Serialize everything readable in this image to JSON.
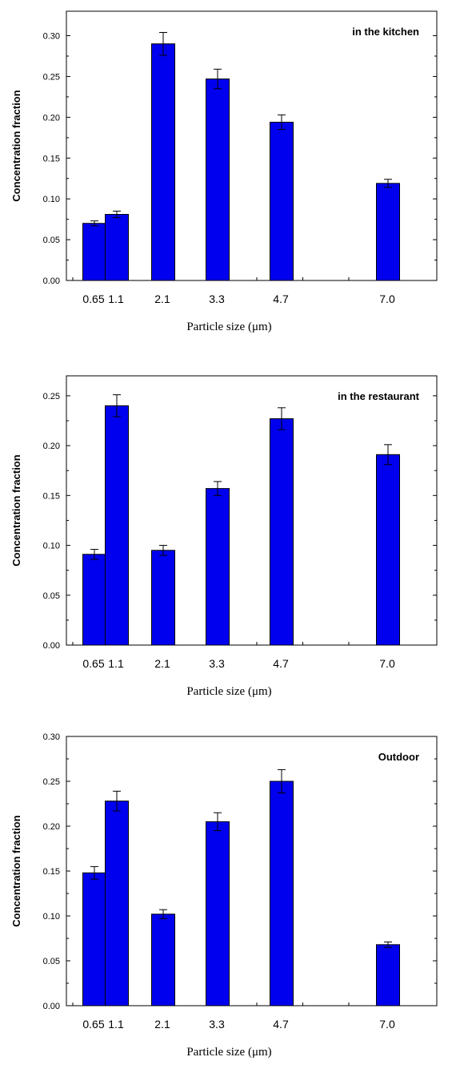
{
  "colors": {
    "bar_fill": "#0000EE",
    "bar_stroke": "#000000",
    "axis": "#000000"
  },
  "chart_data": [
    {
      "type": "bar",
      "annotation": "in the kitchen",
      "xlabel": "Particle size (μm)",
      "ylabel": "Concentration fraction",
      "categories": [
        "0.65",
        "1.1",
        "2.1",
        "3.3",
        "4.7",
        "7.0"
      ],
      "values": [
        0.07,
        0.081,
        0.29,
        0.247,
        0.194,
        0.119
      ],
      "errors": [
        0.003,
        0.004,
        0.014,
        0.012,
        0.009,
        0.005
      ],
      "ylim": [
        0,
        0.33
      ],
      "yticks": [
        "0.00",
        "0.05",
        "0.10",
        "0.15",
        "0.20",
        "0.25",
        "0.30"
      ],
      "grid": false
    },
    {
      "type": "bar",
      "annotation": "in the restaurant",
      "xlabel": "Particle size (μm)",
      "ylabel": "Concentration fraction",
      "categories": [
        "0.65",
        "1.1",
        "2.1",
        "3.3",
        "4.7",
        "7.0"
      ],
      "values": [
        0.091,
        0.24,
        0.095,
        0.157,
        0.227,
        0.191
      ],
      "errors": [
        0.005,
        0.011,
        0.005,
        0.007,
        0.011,
        0.01
      ],
      "ylim": [
        0,
        0.27
      ],
      "yticks": [
        "0.00",
        "0.05",
        "0.10",
        "0.15",
        "0.20",
        "0.25"
      ],
      "grid": false
    },
    {
      "type": "bar",
      "annotation": "Outdoor",
      "xlabel": "Particle size (μm)",
      "ylabel": "Concentration fraction",
      "categories": [
        "0.65",
        "1.1",
        "2.1",
        "3.3",
        "4.7",
        "7.0"
      ],
      "values": [
        0.148,
        0.228,
        0.102,
        0.205,
        0.25,
        0.068
      ],
      "errors": [
        0.007,
        0.011,
        0.005,
        0.01,
        0.013,
        0.003
      ],
      "ylim": [
        0,
        0.3
      ],
      "yticks": [
        "0.00",
        "0.05",
        "0.10",
        "0.15",
        "0.20",
        "0.25",
        "0.30"
      ],
      "grid": false
    }
  ]
}
